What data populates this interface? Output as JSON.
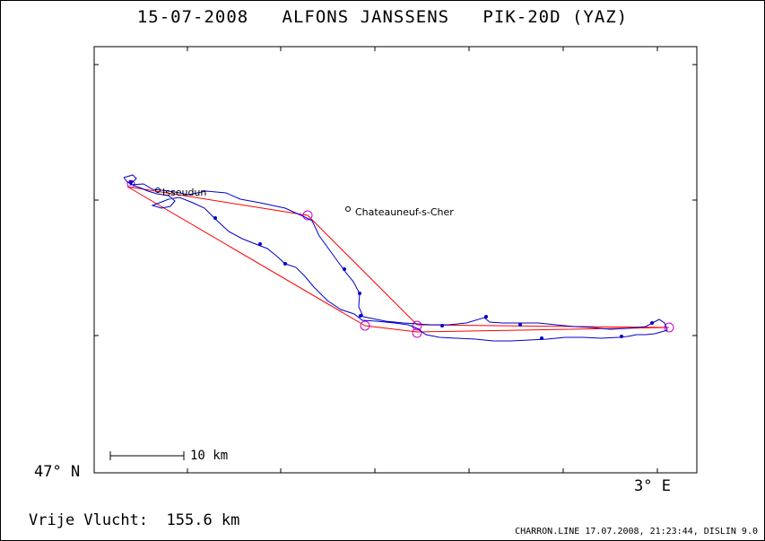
{
  "header": {
    "title": "15-07-2008   ALFONS JANSSENS   PIK-20D (YAZ)"
  },
  "axes": {
    "lat_label": "47° N",
    "lon_label": "3° E"
  },
  "scale_bar": {
    "label": "10 km"
  },
  "places": [
    {
      "name": "Isseudun"
    },
    {
      "name": "Chateauneuf-s-Cher"
    }
  ],
  "footer": {
    "distance_text": "Vrije Vlucht:  155.6 km",
    "program_info": "CHARRON.LINE 17.07.2008, 21:23:44, DISLIN 9.0"
  },
  "colors": {
    "track": "#0000cc",
    "task": "#ff0000",
    "turnpoint": "#cc00cc",
    "axis": "#000000"
  }
}
